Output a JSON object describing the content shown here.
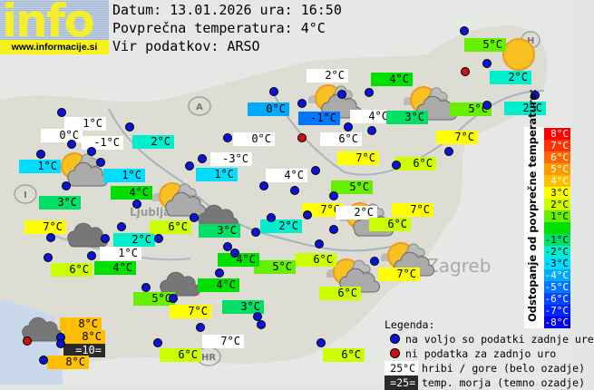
{
  "logo": {
    "word": "info",
    "url": "www.informacije.si"
  },
  "header": {
    "date_line": "Datum: 13.01.2026 ura: 16:50",
    "avg_line": "Povprečna temperatura: 4°C",
    "source_line": "Vir podatkov: ARSO"
  },
  "scale": {
    "title": "Odstopanje od povprečne temperature:",
    "rows": [
      {
        "label": "8°C",
        "color": "#ff0000"
      },
      {
        "label": "7°C",
        "color": "#ff3300"
      },
      {
        "label": "6°C",
        "color": "#ff6a00"
      },
      {
        "label": "5°C",
        "color": "#ff9900"
      },
      {
        "label": "4°C",
        "color": "#ffbf00"
      },
      {
        "label": "3°C",
        "color": "#ffff00"
      },
      {
        "label": "2°C",
        "color": "#ccff00"
      },
      {
        "label": "1°C",
        "color": "#66f000"
      },
      {
        "label": "",
        "color": "#00e000"
      },
      {
        "label": "-1°C",
        "color": "#00e066"
      },
      {
        "label": "-2°C",
        "color": "#00eecc"
      },
      {
        "label": "-3°C",
        "color": "#00ddff"
      },
      {
        "label": "-4°C",
        "color": "#00aaff"
      },
      {
        "label": "-5°C",
        "color": "#0077ff"
      },
      {
        "label": "-6°C",
        "color": "#0044ff"
      },
      {
        "label": "-7°C",
        "color": "#0022ff"
      },
      {
        "label": "-8°C",
        "color": "#0000ee"
      }
    ]
  },
  "legend": {
    "title": "Legenda:",
    "available": "na voljo so podatki zadnje ure",
    "nodata": "ni podatka za zadnjo uro",
    "mountain_sample": "25°C",
    "mountain": "hribi / gore (belo ozadje)",
    "sea_sample": "=25=",
    "sea": "temp. morja (temno ozadje)",
    "colors": {
      "available": "#0a14d8",
      "nodata": "#d01010",
      "mountain_bg": "#ffffff",
      "sea_bg": "#2a2a2a"
    }
  },
  "stations": [
    {
      "temp": "1°C",
      "type": "mountain"
    },
    {
      "temp": "0°C",
      "type": "mountain"
    },
    {
      "temp": "-1°C",
      "type": "mountain"
    },
    {
      "temp": "1°C",
      "type": "normal"
    },
    {
      "temp": "2°C",
      "type": "normal"
    },
    {
      "temp": "3°C",
      "type": "normal"
    },
    {
      "temp": "4°C",
      "type": "normal"
    },
    {
      "temp": "1°C",
      "type": "normal"
    },
    {
      "temp": "0°C",
      "type": "normal"
    },
    {
      "temp": "0°C",
      "type": "mountain"
    },
    {
      "temp": "-3°C",
      "type": "mountain"
    },
    {
      "temp": "1°C",
      "type": "normal"
    },
    {
      "temp": "4°C",
      "type": "mountain"
    },
    {
      "temp": "2°C",
      "type": "mountain"
    },
    {
      "temp": "-1°C",
      "type": "normal"
    },
    {
      "temp": "4°C",
      "type": "mountain"
    },
    {
      "temp": "4°C",
      "type": "normal"
    },
    {
      "temp": "3°C",
      "type": "normal"
    },
    {
      "temp": "5°C",
      "type": "normal"
    },
    {
      "temp": "2°C",
      "type": "normal"
    },
    {
      "temp": "5°C",
      "type": "normal"
    },
    {
      "temp": "2°C",
      "type": "normal"
    },
    {
      "temp": "6°C",
      "type": "mountain"
    },
    {
      "temp": "7°C",
      "type": "normal"
    },
    {
      "temp": "7°C",
      "type": "normal"
    },
    {
      "temp": "6°C",
      "type": "normal"
    },
    {
      "temp": "5°C",
      "type": "normal"
    },
    {
      "temp": "7°C",
      "type": "normal"
    },
    {
      "temp": "2°C",
      "type": "mountain"
    },
    {
      "temp": "7°C",
      "type": "normal"
    },
    {
      "temp": "6°C",
      "type": "normal"
    },
    {
      "temp": "2°C",
      "type": "normal"
    },
    {
      "temp": "6°C",
      "type": "normal"
    },
    {
      "temp": "5°C",
      "type": "normal"
    },
    {
      "temp": "7°C",
      "type": "normal"
    },
    {
      "temp": "6°C",
      "type": "normal"
    },
    {
      "temp": "6°C",
      "type": "normal"
    },
    {
      "temp": "6°C",
      "type": "normal"
    },
    {
      "temp": "7°C",
      "type": "mountain"
    },
    {
      "temp": "3°C",
      "type": "normal"
    },
    {
      "temp": "4°C",
      "type": "normal"
    },
    {
      "temp": "5°C",
      "type": "normal"
    },
    {
      "temp": "7°C",
      "type": "normal"
    },
    {
      "temp": "4°C",
      "type": "normal"
    },
    {
      "temp": "3°C",
      "type": "normal"
    },
    {
      "temp": "2°C",
      "type": "normal"
    },
    {
      "temp": "6°C",
      "type": "normal"
    },
    {
      "temp": "1°C",
      "type": "mountain"
    },
    {
      "temp": "4°C",
      "type": "normal"
    },
    {
      "temp": "6°C",
      "type": "normal"
    },
    {
      "temp": "7°C",
      "type": "normal"
    },
    {
      "temp": "8°C",
      "type": "normal"
    },
    {
      "temp": "8°C",
      "type": "normal"
    },
    {
      "temp": "=10=",
      "type": "sea"
    },
    {
      "temp": "8°C",
      "type": "normal"
    }
  ],
  "markers": {
    "available_count": 53,
    "nodata_count": 3
  },
  "weather_icons": [
    "sun-cloud",
    "sun-cloud",
    "sun-cloud",
    "sun-cloud",
    "sun-cloud",
    "sun-cloud",
    "sun-cloud",
    "sun",
    "cloud",
    "cloud",
    "cloud",
    "cloud"
  ],
  "map_marks": [
    "A",
    "I",
    "H",
    "HR",
    "Zagreb",
    "Ljubljana"
  ]
}
